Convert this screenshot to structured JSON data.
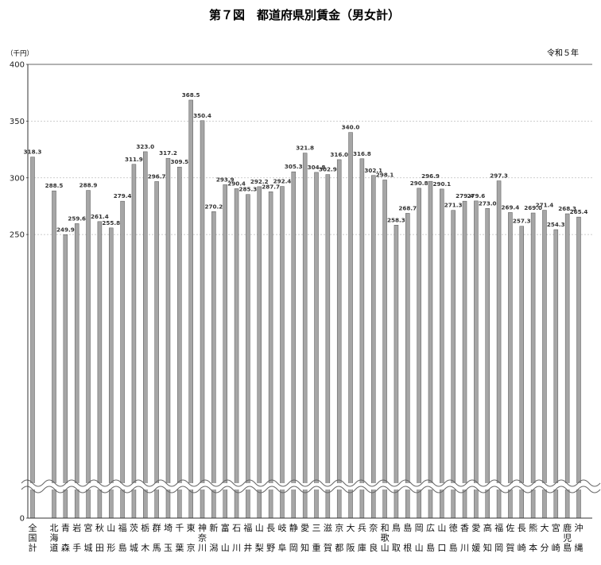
{
  "chart_data": {
    "type": "bar",
    "title": "第７図　都道府県別賃金（男女計）",
    "unit_label": "（千円）",
    "period_label": "令和５年",
    "ylim": [
      0,
      400
    ],
    "yticks": [
      0,
      250,
      300,
      350,
      400
    ],
    "axis_break": true,
    "grid": true,
    "bar_color": "#a6a6a6",
    "categories": [
      "全国計",
      "北海道",
      "青森",
      "岩手",
      "宮城",
      "秋田",
      "山形",
      "福島",
      "茨城",
      "栃木",
      "群馬",
      "埼玉",
      "千葉",
      "東京",
      "神奈川",
      "新潟",
      "富山",
      "石川",
      "福井",
      "山梨",
      "長野",
      "岐阜",
      "静岡",
      "愛知",
      "三重",
      "滋賀",
      "京都",
      "大阪",
      "兵庫",
      "奈良",
      "和歌山",
      "鳥取",
      "島根",
      "岡山",
      "広島",
      "山口",
      "徳島",
      "香川",
      "愛媛",
      "高知",
      "福岡",
      "佐賀",
      "長崎",
      "熊本",
      "大分",
      "宮崎",
      "鹿児島",
      "沖縄"
    ],
    "values": [
      318.3,
      288.5,
      249.9,
      259.6,
      288.9,
      261.4,
      255.8,
      279.4,
      311.9,
      323.0,
      296.7,
      317.2,
      309.5,
      368.5,
      350.4,
      270.2,
      293.9,
      290.4,
      285.3,
      292.2,
      287.7,
      292.4,
      305.3,
      321.8,
      304.8,
      302.9,
      316.0,
      340.0,
      316.8,
      302.1,
      298.1,
      258.3,
      268.7,
      290.8,
      296.9,
      290.1,
      271.3,
      279.4,
      279.6,
      273.0,
      297.3,
      269.4,
      257.3,
      269.0,
      271.4,
      254.3,
      268.3,
      265.4
    ],
    "value_labels": [
      "318.3",
      "288.5",
      "249.9",
      "259.6",
      "288.9",
      "261.4",
      "255.8",
      "279.4",
      "311.9",
      "323.0",
      "296.7",
      "317.2",
      "309.5",
      "368.5",
      "350.4",
      "270.2",
      "293.9",
      "290.4",
      "285.3",
      "292.2",
      "287.7",
      "292.4",
      "305.3",
      "321.8",
      "304.8",
      "302.9",
      "316.0",
      "340.0",
      "316.8",
      "302.1",
      "298.1",
      "258.3",
      "268.7",
      "290.8",
      "296.9",
      "290.1",
      "271.3",
      "279.4",
      "279.6",
      "273.0",
      "297.3",
      "269.4",
      "257.3",
      "269.0",
      "271.4",
      "254.3",
      "268.3",
      "265.4"
    ]
  }
}
